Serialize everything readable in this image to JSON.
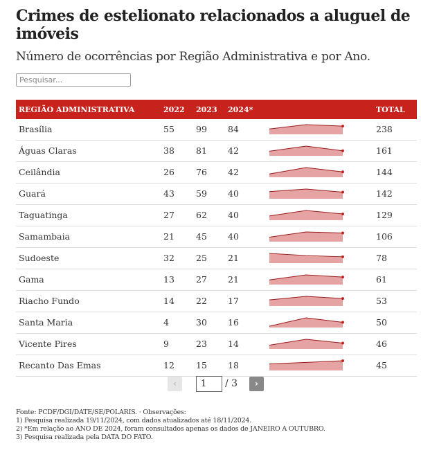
{
  "title": "Crimes de estelionato relacionados a aluguel de imóveis",
  "subtitle": "Número de ocorrências por Região Administrativa e por Ano.",
  "search": {
    "placeholder": "Pesquisar..."
  },
  "table": {
    "headers": {
      "region": "REGIÃO ADMINISTRATIVA",
      "y2022": "2022",
      "y2023": "2023",
      "y2024": "2024*",
      "total": "TOTAL"
    },
    "rows": [
      {
        "region": "Brasília",
        "y2022": "55",
        "y2023": "99",
        "y2024": "84",
        "total": "238"
      },
      {
        "region": "Águas Claras",
        "y2022": "38",
        "y2023": "81",
        "y2024": "42",
        "total": "161"
      },
      {
        "region": "Ceilândia",
        "y2022": "26",
        "y2023": "76",
        "y2024": "42",
        "total": "144"
      },
      {
        "region": "Guará",
        "y2022": "43",
        "y2023": "59",
        "y2024": "40",
        "total": "142"
      },
      {
        "region": "Taguatinga",
        "y2022": "27",
        "y2023": "62",
        "y2024": "40",
        "total": "129"
      },
      {
        "region": "Samambaia",
        "y2022": "21",
        "y2023": "45",
        "y2024": "40",
        "total": "106"
      },
      {
        "region": "Sudoeste",
        "y2022": "32",
        "y2023": "25",
        "y2024": "21",
        "total": "78"
      },
      {
        "region": "Gama",
        "y2022": "13",
        "y2023": "27",
        "y2024": "21",
        "total": "61"
      },
      {
        "region": "Riacho Fundo",
        "y2022": "14",
        "y2023": "22",
        "y2024": "17",
        "total": "53"
      },
      {
        "region": "Santa Maria",
        "y2022": "4",
        "y2023": "30",
        "y2024": "16",
        "total": "50"
      },
      {
        "region": "Vicente Pires",
        "y2022": "9",
        "y2023": "23",
        "y2024": "14",
        "total": "46"
      },
      {
        "region": "Recanto Das Emas",
        "y2022": "12",
        "y2023": "15",
        "y2024": "18",
        "total": "45"
      }
    ]
  },
  "pagination": {
    "prev": "‹",
    "current": "1",
    "of": "/ 3",
    "next": "›"
  },
  "notes": {
    "source": "Fonte: PCDF/DGI/DATE/SE/POLARIS. · Observações:",
    "n1": "1) Pesquisa realizada 19/11/2024, com dados atualizados até 18/11/2024.",
    "n2": "2) *Em relação ao ANO DE 2024, foram consultados apenas os dados de JANEIRO A OUTUBRO.",
    "n3": "3) Pesquisa realizada pela DATA DO FATO."
  },
  "colors": {
    "header_bg": "#c7231c",
    "spark_fill": "#e6a3a3",
    "spark_line": "#9b1c1c",
    "spark_dot": "#c7231c"
  }
}
